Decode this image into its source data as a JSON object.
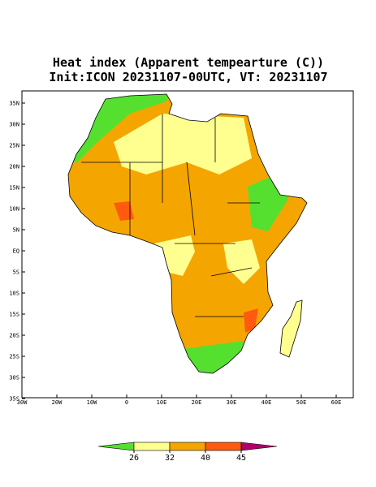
{
  "map": {
    "title": "Heat index (Apparent tempearture (C))",
    "subtitle": "Init:ICON 20231107-00UTC, VT: 20231107",
    "lat_labels": [
      "35N",
      "30N",
      "25N",
      "20N",
      "15N",
      "10N",
      "5N",
      "EQ",
      "5S",
      "10S",
      "15S",
      "20S",
      "25S",
      "30S",
      "35S"
    ],
    "lon_labels": [
      "30W",
      "20W",
      "10W",
      "0",
      "10E",
      "20E",
      "30E",
      "40E",
      "50E",
      "60E"
    ],
    "colorbar": {
      "ticks": [
        26,
        32,
        40,
        45
      ],
      "colors": [
        "#55e030",
        "#ffff90",
        "#f5a500",
        "#ff5a10",
        "#b0006a"
      ]
    }
  }
}
